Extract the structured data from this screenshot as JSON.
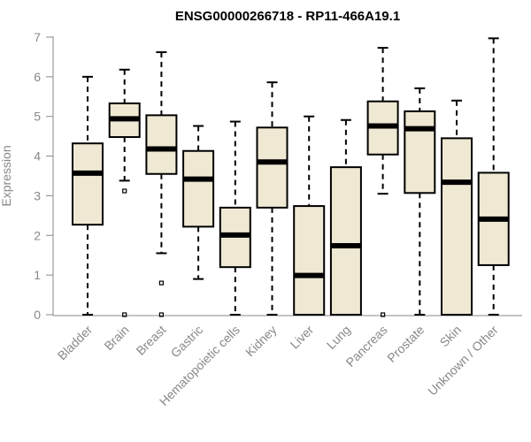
{
  "chart_data": {
    "type": "boxplot",
    "title": "ENSG00000266718 - RP11-466A19.1",
    "xlabel": "",
    "ylabel": "Expression",
    "ylim": [
      0,
      7
    ],
    "yticks": [
      0,
      1,
      2,
      3,
      4,
      5,
      6,
      7
    ],
    "box_fill": "#efe8d2",
    "categories": [
      "Bladder",
      "Brain",
      "Breast",
      "Gastric",
      "Hematopoietic cells",
      "Kidney",
      "Liver",
      "Lung",
      "Pancreas",
      "Prostate",
      "Skin",
      "Unknown / Other"
    ],
    "boxes": [
      {
        "min": 0,
        "q1": 2.27,
        "median": 3.57,
        "q3": 4.32,
        "max": 6.0,
        "outliers": []
      },
      {
        "min": 3.38,
        "q1": 4.48,
        "median": 4.94,
        "q3": 5.33,
        "max": 6.18,
        "outliers": [
          3.12,
          0
        ]
      },
      {
        "min": 1.55,
        "q1": 3.55,
        "median": 4.18,
        "q3": 5.03,
        "max": 6.62,
        "outliers": [
          0.8,
          0
        ]
      },
      {
        "min": 0.9,
        "q1": 2.22,
        "median": 3.42,
        "q3": 4.13,
        "max": 4.76,
        "outliers": []
      },
      {
        "min": 0,
        "q1": 1.2,
        "median": 2.01,
        "q3": 2.7,
        "max": 4.87,
        "outliers": []
      },
      {
        "min": 0,
        "q1": 2.7,
        "median": 3.85,
        "q3": 4.72,
        "max": 5.86,
        "outliers": []
      },
      {
        "min": 0,
        "q1": 0,
        "median": 0.99,
        "q3": 2.74,
        "max": 5.0,
        "outliers": []
      },
      {
        "min": 0,
        "q1": 0,
        "median": 1.74,
        "q3": 3.72,
        "max": 4.91,
        "outliers": []
      },
      {
        "min": 3.05,
        "q1": 4.04,
        "median": 4.76,
        "q3": 5.38,
        "max": 6.73,
        "outliers": [
          0
        ]
      },
      {
        "min": 0,
        "q1": 3.07,
        "median": 4.69,
        "q3": 5.13,
        "max": 5.71,
        "outliers": []
      },
      {
        "min": 0,
        "q1": 0,
        "median": 3.34,
        "q3": 4.45,
        "max": 5.4,
        "outliers": []
      },
      {
        "min": 0,
        "q1": 1.25,
        "median": 2.41,
        "q3": 3.58,
        "max": 6.97,
        "outliers": []
      }
    ]
  }
}
